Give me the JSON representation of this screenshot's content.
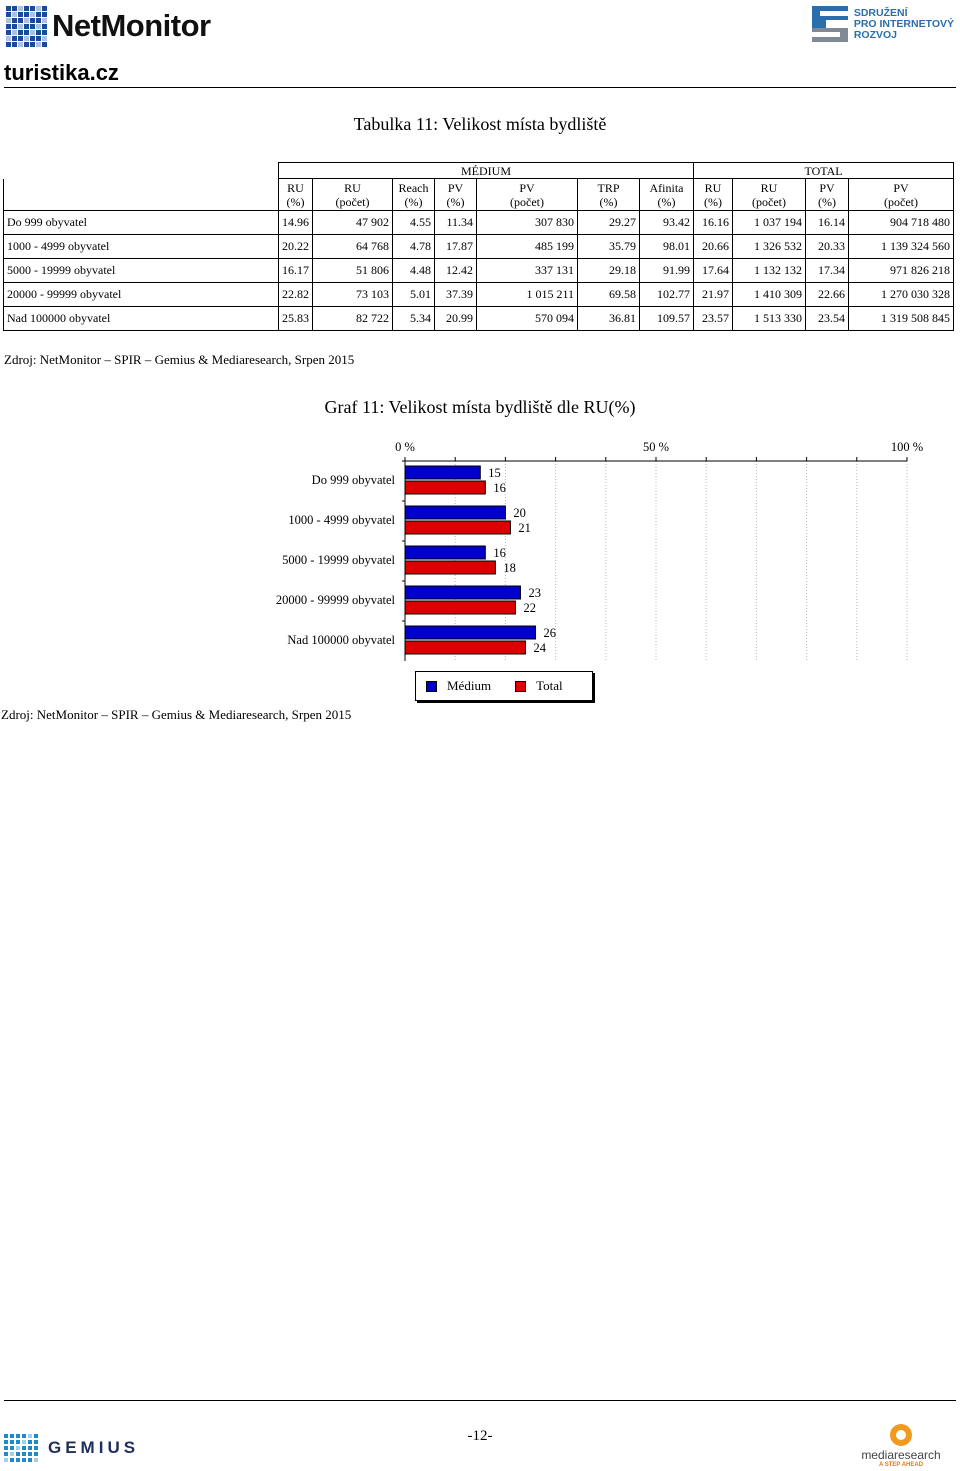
{
  "header": {
    "brand": "NetMonitor",
    "partner_lines": [
      "SDRUŽENÍ",
      "PRO INTERNETOVÝ",
      "ROZVOJ"
    ],
    "site": "turistika.cz"
  },
  "table": {
    "title": "Tabulka 11: Velikost místa bydliště",
    "group_medium": "MÉDIUM",
    "group_total": "TOTAL",
    "columns": [
      [
        "RU",
        "(%)"
      ],
      [
        "RU",
        "(počet)"
      ],
      [
        "Reach",
        "(%)"
      ],
      [
        "PV",
        "(%)"
      ],
      [
        "PV",
        "(počet)"
      ],
      [
        "TRP",
        "(%)"
      ],
      [
        "Afinita",
        "(%)"
      ],
      [
        "RU",
        "(%)"
      ],
      [
        "RU",
        "(počet)"
      ],
      [
        "PV",
        "(%)"
      ],
      [
        "PV",
        "(počet)"
      ]
    ],
    "rows": [
      [
        "Do 999 obyvatel",
        "14.96",
        "47 902",
        "4.55",
        "11.34",
        "307 830",
        "29.27",
        "93.42",
        "16.16",
        "1 037 194",
        "16.14",
        "904 718 480"
      ],
      [
        "1000 - 4999 obyvatel",
        "20.22",
        "64 768",
        "4.78",
        "17.87",
        "485 199",
        "35.79",
        "98.01",
        "20.66",
        "1 326 532",
        "20.33",
        "1 139 324 560"
      ],
      [
        "5000 - 19999 obyvatel",
        "16.17",
        "51 806",
        "4.48",
        "12.42",
        "337 131",
        "29.18",
        "91.99",
        "17.64",
        "1 132 132",
        "17.34",
        "971 826 218"
      ],
      [
        "20000 - 99999 obyvatel",
        "22.82",
        "73 103",
        "5.01",
        "37.39",
        "1 015 211",
        "69.58",
        "102.77",
        "21.97",
        "1 410 309",
        "22.66",
        "1 270 030 328"
      ],
      [
        "Nad 100000 obyvatel",
        "25.83",
        "82 722",
        "5.34",
        "20.99",
        "570 094",
        "36.81",
        "109.57",
        "23.57",
        "1 513 330",
        "23.54",
        "1 319 508 845"
      ]
    ],
    "source": "Zdroj: NetMonitor – SPIR – Gemius & Mediaresearch, Srpen 2015"
  },
  "chart_data": {
    "type": "bar",
    "orientation": "horizontal",
    "title": "Graf 11: Velikost místa bydliště dle RU(%)",
    "categories": [
      "Do 999 obyvatel",
      "1000 - 4999 obyvatel",
      "5000 - 19999 obyvatel",
      "20000 - 99999 obyvatel",
      "Nad 100000 obyvatel"
    ],
    "series": [
      {
        "name": "Médium",
        "color": "#0000cc",
        "values": [
          15,
          20,
          16,
          23,
          26
        ]
      },
      {
        "name": "Total",
        "color": "#dd0000",
        "values": [
          16,
          21,
          18,
          22,
          24
        ]
      }
    ],
    "xlim": [
      0,
      100
    ],
    "x_ticks": [
      "0 %",
      "50 %",
      "100 %"
    ],
    "x_tick_values": [
      0,
      50,
      100
    ],
    "grid": true,
    "legend_position": "bottom",
    "data_labels": true
  },
  "chart_source": "Zdroj: NetMonitor – SPIR – Gemius & Mediaresearch, Srpen 2015",
  "footer": {
    "left_logo": "GEMIUS",
    "page_number": "-12-",
    "right_logo": "mediaresearch",
    "right_tagline": "A STEP AHEAD"
  }
}
